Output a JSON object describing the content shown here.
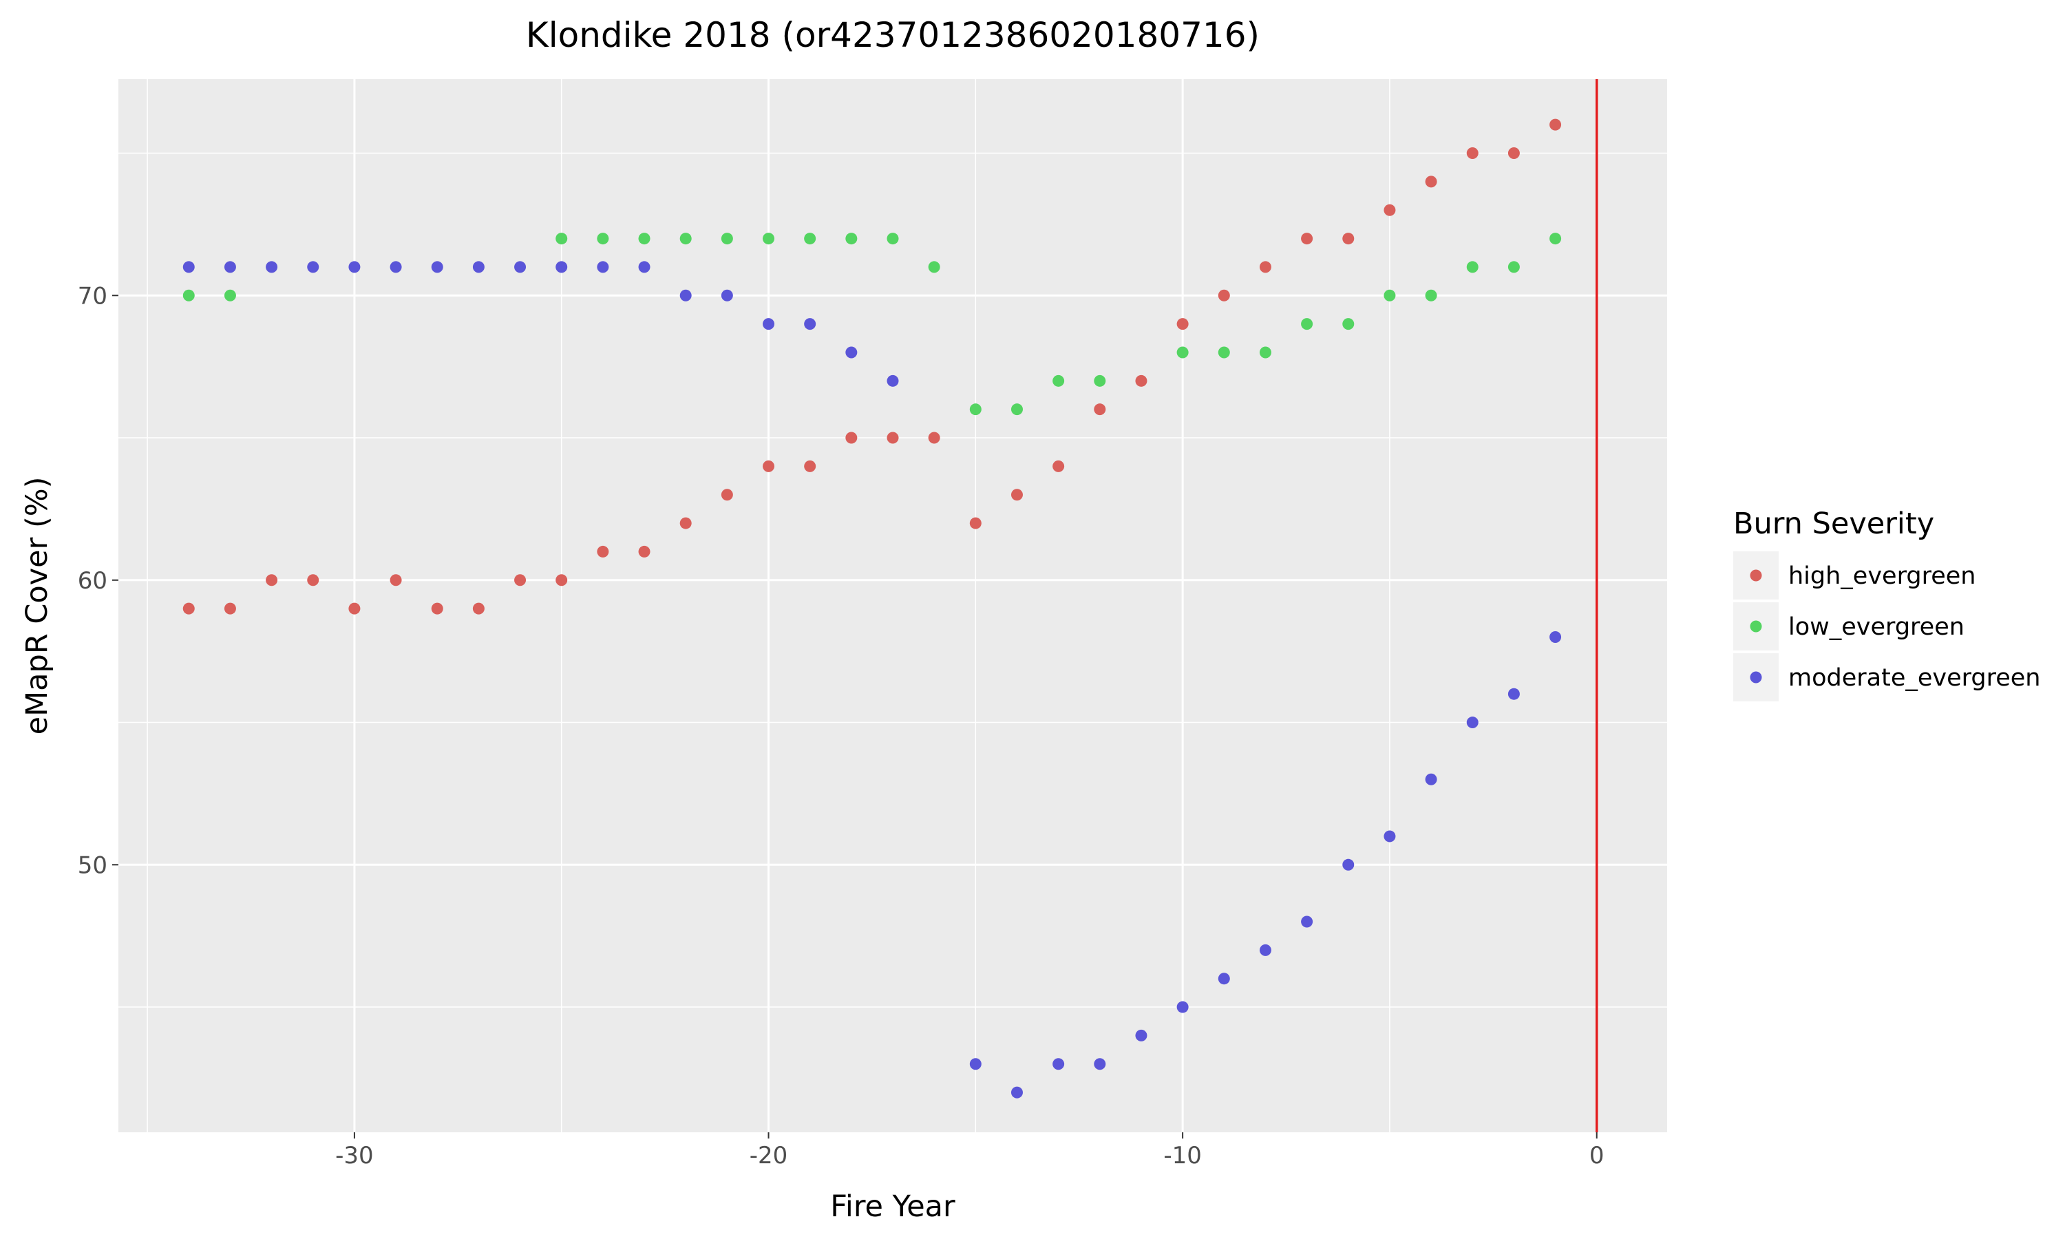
{
  "chart_data": {
    "type": "scatter",
    "title": "Klondike 2018 (or4237012386020180716)",
    "xlabel": "Fire Year",
    "ylabel": "eMapR Cover (%)",
    "xlim": [
      -35.7,
      1.7
    ],
    "ylim": [
      40.6,
      77.6
    ],
    "xticks": [
      -30,
      -20,
      -10,
      0
    ],
    "xtick_labels": [
      "-30",
      "-20",
      "-10",
      "0"
    ],
    "yticks": [
      50,
      60,
      70
    ],
    "ytick_labels": [
      "50",
      "60",
      "70"
    ],
    "grid": true,
    "background": "#ebebeb",
    "vline": {
      "x": 0,
      "color": "#e41a1c"
    },
    "legend": {
      "title": "Burn Severity",
      "position": "right"
    },
    "x": [
      -34,
      -33,
      -32,
      -31,
      -30,
      -29,
      -28,
      -27,
      -26,
      -25,
      -24,
      -23,
      -22,
      -21,
      -20,
      -19,
      -18,
      -17,
      -16,
      -15,
      -14,
      -13,
      -12,
      -11,
      -10,
      -9,
      -8,
      -7,
      -6,
      -5,
      -4,
      -3,
      -2,
      -1
    ],
    "series": [
      {
        "name": "high_evergreen",
        "color": "#d95f5a",
        "values": [
          59,
          59,
          60,
          60,
          59,
          60,
          59,
          59,
          60,
          60,
          61,
          61,
          62,
          63,
          64,
          64,
          65,
          65,
          65,
          62,
          63,
          64,
          66,
          67,
          69,
          70,
          71,
          72,
          72,
          73,
          74,
          75,
          75,
          76
        ]
      },
      {
        "name": "low_evergreen",
        "color": "#53d461",
        "values": [
          70,
          70,
          null,
          null,
          null,
          null,
          null,
          null,
          null,
          72,
          72,
          72,
          72,
          72,
          72,
          72,
          72,
          72,
          71,
          66,
          66,
          67,
          67,
          null,
          68,
          68,
          68,
          69,
          69,
          70,
          70,
          71,
          71,
          72
        ]
      },
      {
        "name": "moderate_evergreen",
        "color": "#5a55d8",
        "values": [
          71,
          71,
          71,
          71,
          71,
          71,
          71,
          71,
          71,
          71,
          71,
          71,
          70,
          70,
          69,
          69,
          68,
          67,
          null,
          43,
          42,
          43,
          43,
          44,
          45,
          46,
          47,
          48,
          50,
          51,
          53,
          55,
          56,
          58
        ]
      }
    ]
  }
}
